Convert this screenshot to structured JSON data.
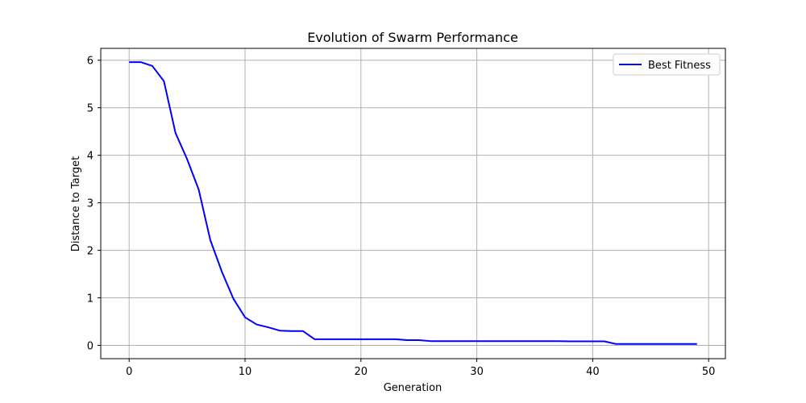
{
  "chart_data": {
    "type": "line",
    "title": "Evolution of Swarm Performance",
    "xlabel": "Generation",
    "ylabel": "Distance to Target",
    "xlim": [
      -2.45,
      51.45
    ],
    "ylim": [
      -0.28,
      6.25
    ],
    "xticks": [
      0,
      10,
      20,
      30,
      40,
      50
    ],
    "yticks": [
      0,
      1,
      2,
      3,
      4,
      5,
      6
    ],
    "grid": true,
    "legend_position": "top-right",
    "series": [
      {
        "name": "Best Fitness",
        "color": "#0000ff",
        "x": [
          0,
          1,
          2,
          3,
          4,
          5,
          6,
          7,
          8,
          9,
          10,
          11,
          12,
          13,
          14,
          15,
          16,
          17,
          18,
          19,
          20,
          21,
          22,
          23,
          24,
          25,
          26,
          27,
          28,
          29,
          30,
          31,
          32,
          33,
          34,
          35,
          36,
          37,
          38,
          39,
          40,
          41,
          42,
          43,
          44,
          45,
          46,
          47,
          48,
          49
        ],
        "values": [
          5.96,
          5.96,
          5.88,
          5.56,
          4.47,
          3.92,
          3.28,
          2.22,
          1.55,
          0.98,
          0.59,
          0.44,
          0.38,
          0.31,
          0.3,
          0.3,
          0.13,
          0.13,
          0.13,
          0.13,
          0.13,
          0.13,
          0.13,
          0.13,
          0.11,
          0.11,
          0.09,
          0.09,
          0.09,
          0.09,
          0.09,
          0.09,
          0.09,
          0.09,
          0.09,
          0.09,
          0.09,
          0.09,
          0.085,
          0.085,
          0.085,
          0.085,
          0.03,
          0.03,
          0.03,
          0.03,
          0.03,
          0.03,
          0.03,
          0.03
        ]
      }
    ]
  }
}
